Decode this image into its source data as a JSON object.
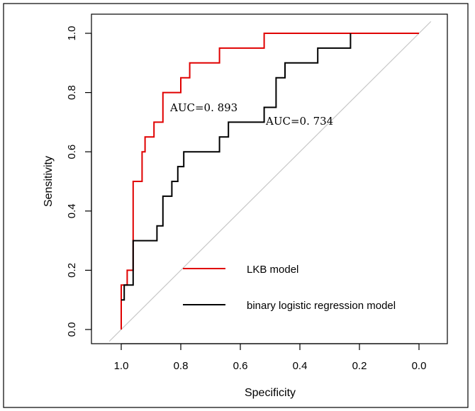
{
  "chart_data": {
    "type": "line",
    "xlabel": "Specificity",
    "ylabel": "Sensitivity",
    "xlim": [
      1.0,
      0.0
    ],
    "ylim": [
      0.0,
      1.0
    ],
    "xticks": [
      "1.0",
      "0.8",
      "0.6",
      "0.4",
      "0.2",
      "0.0"
    ],
    "yticks": [
      "0.0",
      "0.2",
      "0.4",
      "0.6",
      "0.8",
      "1.0"
    ],
    "grid": false,
    "legend_position": "bottom-right",
    "reference_line": {
      "from": [
        1.0,
        0.0
      ],
      "to": [
        0.0,
        1.0
      ],
      "color": "#c8c8c8"
    },
    "series": [
      {
        "name": "LKB model",
        "color": "#e00000",
        "auc_label": "AUC=0. 893",
        "points": [
          [
            1.0,
            0.0
          ],
          [
            1.0,
            0.15
          ],
          [
            0.98,
            0.15
          ],
          [
            0.98,
            0.2
          ],
          [
            0.96,
            0.2
          ],
          [
            0.96,
            0.5
          ],
          [
            0.93,
            0.5
          ],
          [
            0.93,
            0.6
          ],
          [
            0.92,
            0.6
          ],
          [
            0.92,
            0.65
          ],
          [
            0.89,
            0.65
          ],
          [
            0.89,
            0.7
          ],
          [
            0.86,
            0.7
          ],
          [
            0.86,
            0.8
          ],
          [
            0.8,
            0.8
          ],
          [
            0.8,
            0.85
          ],
          [
            0.77,
            0.85
          ],
          [
            0.77,
            0.9
          ],
          [
            0.67,
            0.9
          ],
          [
            0.67,
            0.95
          ],
          [
            0.52,
            0.95
          ],
          [
            0.52,
            1.0
          ],
          [
            0.0,
            1.0
          ]
        ]
      },
      {
        "name": "binary logistic regression model",
        "color": "#000000",
        "auc_label": "AUC=0. 734",
        "points": [
          [
            1.0,
            0.1
          ],
          [
            0.99,
            0.1
          ],
          [
            0.99,
            0.15
          ],
          [
            0.96,
            0.15
          ],
          [
            0.96,
            0.3
          ],
          [
            0.88,
            0.3
          ],
          [
            0.88,
            0.35
          ],
          [
            0.86,
            0.35
          ],
          [
            0.86,
            0.45
          ],
          [
            0.83,
            0.45
          ],
          [
            0.83,
            0.5
          ],
          [
            0.81,
            0.5
          ],
          [
            0.81,
            0.55
          ],
          [
            0.79,
            0.55
          ],
          [
            0.79,
            0.6
          ],
          [
            0.67,
            0.6
          ],
          [
            0.67,
            0.65
          ],
          [
            0.64,
            0.65
          ],
          [
            0.64,
            0.7
          ],
          [
            0.52,
            0.7
          ],
          [
            0.52,
            0.75
          ],
          [
            0.48,
            0.75
          ],
          [
            0.48,
            0.85
          ],
          [
            0.45,
            0.85
          ],
          [
            0.45,
            0.9
          ],
          [
            0.34,
            0.9
          ],
          [
            0.34,
            0.95
          ],
          [
            0.23,
            0.95
          ],
          [
            0.23,
            1.0
          ]
        ]
      }
    ]
  }
}
